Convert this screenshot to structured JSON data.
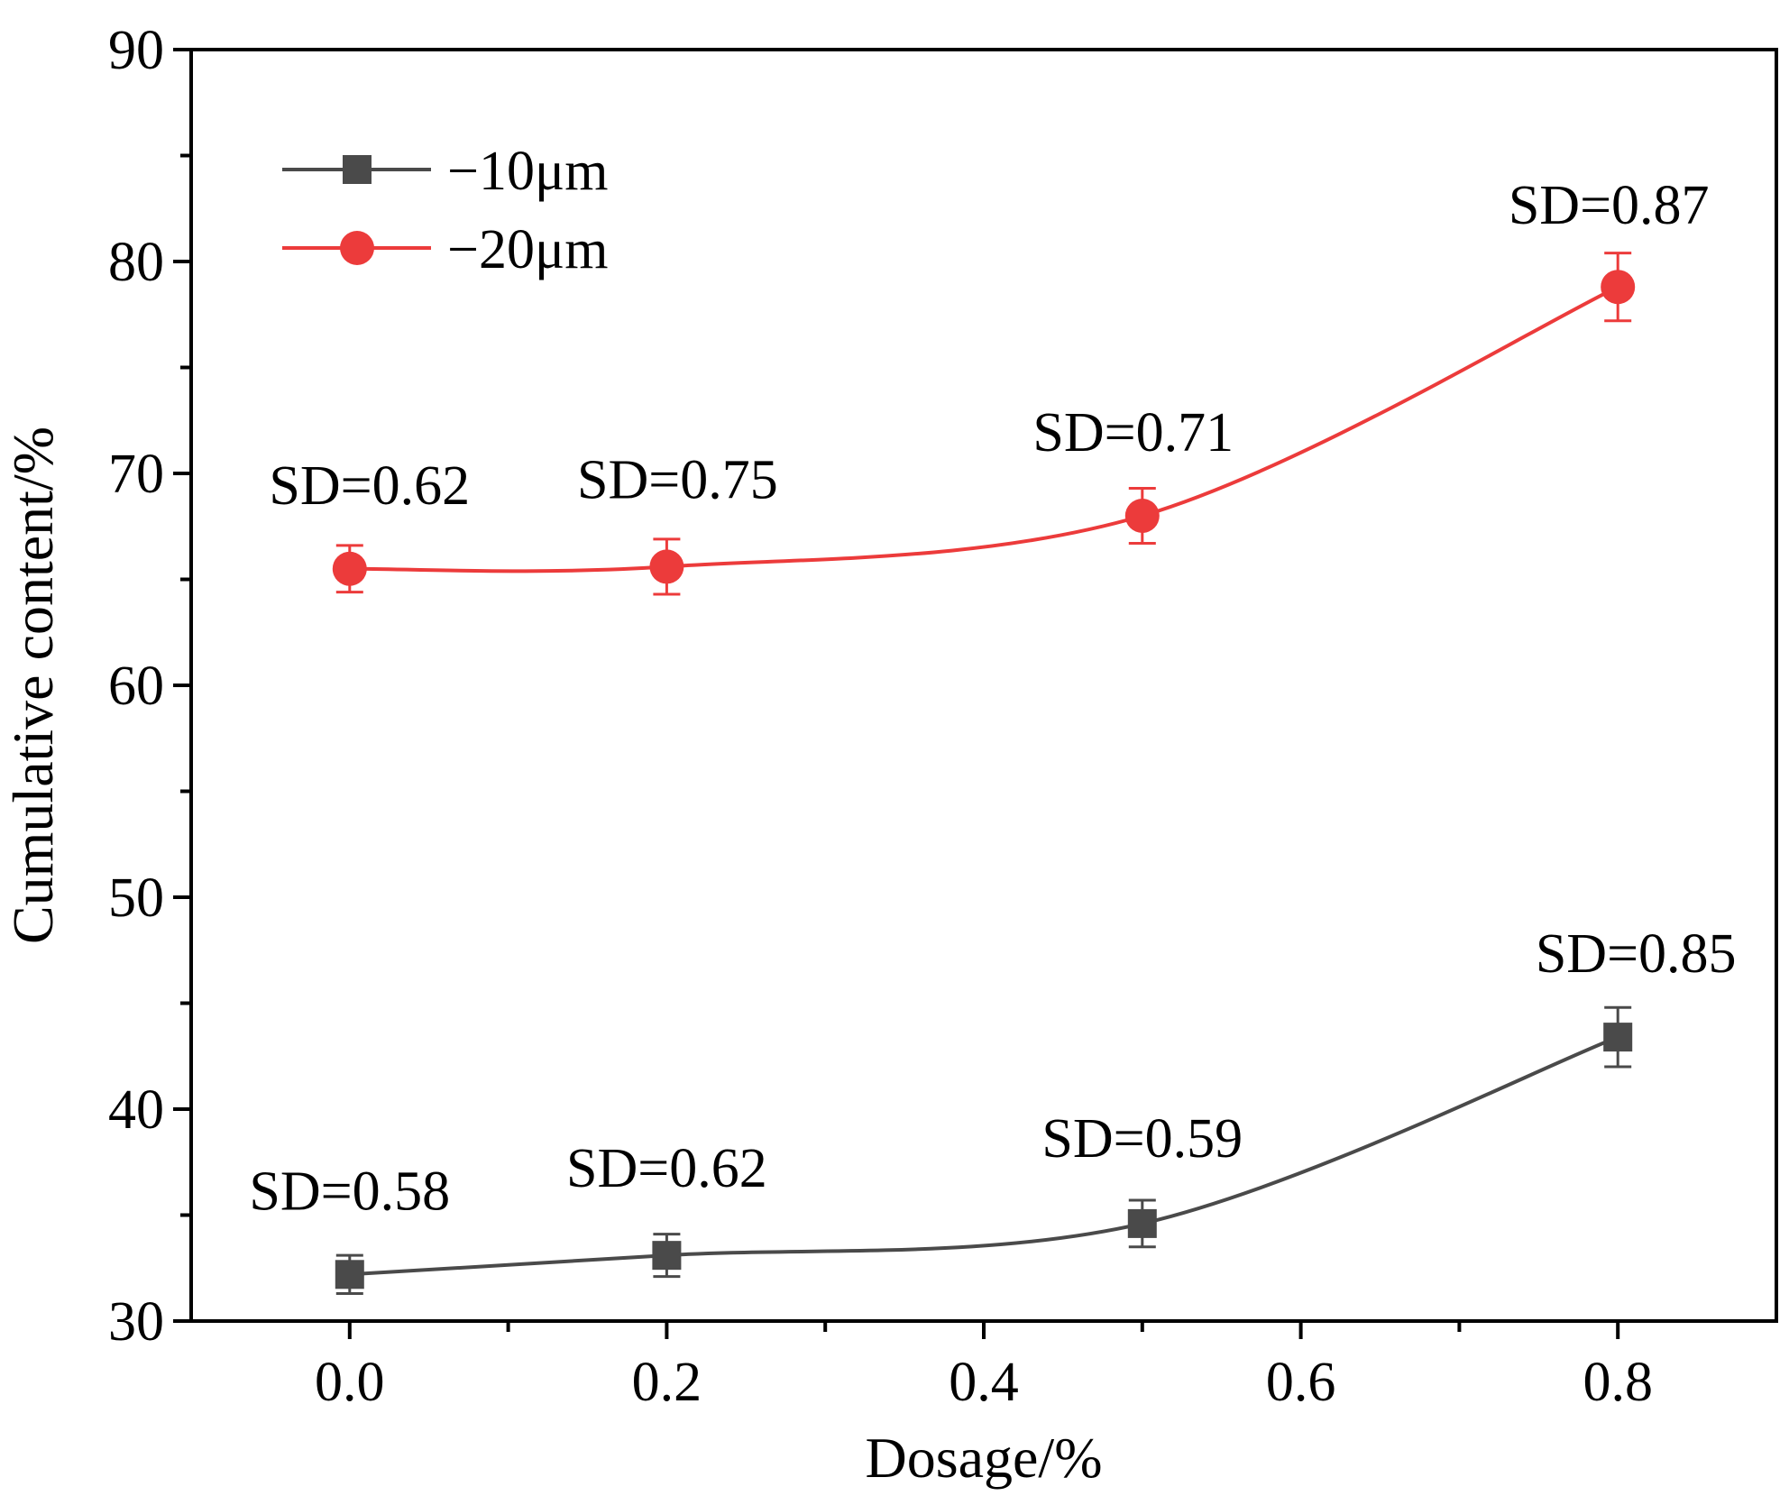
{
  "chart_data": {
    "type": "line",
    "xlabel": "Dosage/%",
    "ylabel": "Cumulative content/%",
    "xlim": [
      -0.1,
      0.9
    ],
    "ylim": [
      30,
      90
    ],
    "x_major_ticks": [
      0.0,
      0.2,
      0.4,
      0.6,
      0.8
    ],
    "x_tick_labels": [
      "0.0",
      "0.2",
      "0.4",
      "0.6",
      "0.8"
    ],
    "x_minor_ticks": [
      0.1,
      0.3,
      0.5,
      0.7
    ],
    "y_major_ticks": [
      30,
      40,
      50,
      60,
      70,
      80,
      90
    ],
    "y_tick_labels": [
      "30",
      "40",
      "50",
      "60",
      "70",
      "80",
      "90"
    ],
    "y_minor_ticks": [
      35,
      45,
      55,
      65,
      75,
      85
    ],
    "grid": false,
    "legend_position": "top-left",
    "series": [
      {
        "name": "−10μm",
        "color": "#4a4a4a",
        "marker": "square",
        "x": [
          0.0,
          0.2,
          0.5,
          0.8
        ],
        "y": [
          32.2,
          33.1,
          34.6,
          43.4
        ],
        "error": [
          0.9,
          1.0,
          1.1,
          1.4
        ],
        "labels": [
          "SD=0.58",
          "SD=0.62",
          "SD=0.59",
          "SD=0.85"
        ]
      },
      {
        "name": "−20μm",
        "color": "#ec3b3b",
        "marker": "circle",
        "x": [
          0.0,
          0.2,
          0.5,
          0.8
        ],
        "y": [
          65.5,
          65.6,
          68.0,
          78.8
        ],
        "error": [
          1.1,
          1.3,
          1.3,
          1.6
        ],
        "labels": [
          "SD=0.62",
          "SD=0.75",
          "SD=0.71",
          "SD=0.87"
        ]
      }
    ]
  }
}
